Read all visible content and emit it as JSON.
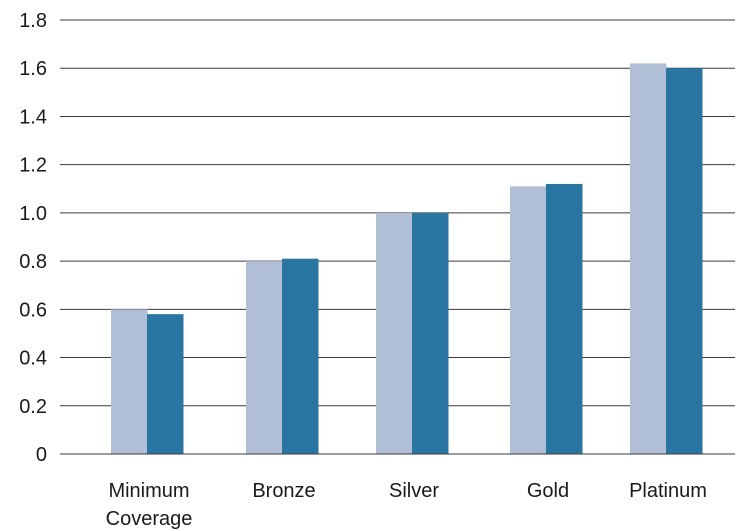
{
  "chart_data": {
    "type": "bar",
    "categories": [
      [
        "Minimum",
        "Coverage"
      ],
      [
        "Bronze"
      ],
      [
        "Silver"
      ],
      [
        "Gold"
      ],
      [
        "Platinum"
      ]
    ],
    "series": [
      {
        "values": [
          0.6,
          0.8,
          1.0,
          1.11,
          1.62
        ],
        "color": "#b1bfd6"
      },
      {
        "values": [
          0.58,
          0.81,
          1.0,
          1.12,
          1.6
        ],
        "color": "#2a76a2"
      }
    ],
    "yticks": [
      "0",
      "0.2",
      "0.4",
      "0.6",
      "0.8",
      "1.0",
      "1.2",
      "1.4",
      "1.6",
      "1.8"
    ],
    "ylim": [
      0,
      1.8
    ],
    "grid": true,
    "title": "",
    "xlabel": "",
    "ylabel": ""
  }
}
